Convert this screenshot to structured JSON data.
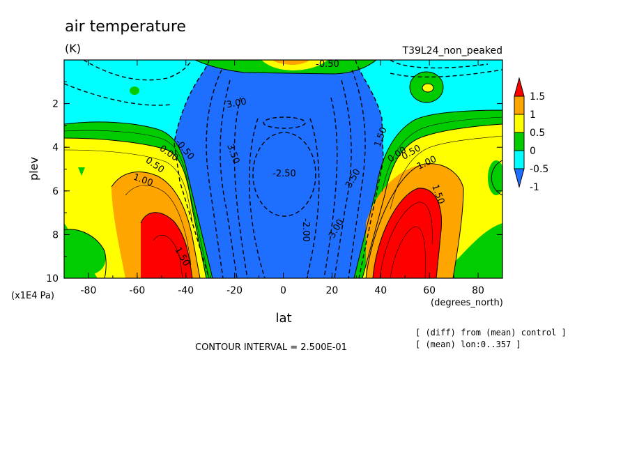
{
  "chart_data": {
    "type": "heatmap",
    "title": "air temperature",
    "units": "(K)",
    "run_label": "T39L24_non_peaked",
    "xlabel": "lat",
    "x_units": "(degrees_north)",
    "ylabel": "plev",
    "y_units": "(x1E4 Pa)",
    "x_ticks": [
      "-80",
      "-60",
      "-40",
      "-20",
      "0",
      "20",
      "40",
      "60",
      "80"
    ],
    "y_ticks": [
      "2",
      "4",
      "6",
      "8",
      "10"
    ],
    "xlim": [
      -90,
      90
    ],
    "ylim": [
      10,
      0
    ],
    "contour_interval_text": "CONTOUR INTERVAL = 2.500E-01",
    "notes": [
      "[ (diff) from (mean) control ]",
      "[ (mean) lon:0..357 ]"
    ],
    "colorbar": {
      "labels": [
        "1.5",
        "1",
        "0.5",
        "0",
        "-0.5",
        "-1"
      ],
      "colors": [
        "#ff0000",
        "#ffa500",
        "#ffff00",
        "#00cc00",
        "#00ffff",
        "#1e6eff"
      ]
    },
    "contour_labels": [
      "3.00",
      "3.50",
      "-2.50",
      "-2.00",
      "3.00",
      "3.50",
      "0.00",
      "-0.50",
      "0.50",
      "1.00",
      "1.50",
      "0.00",
      "0.50",
      "1.00",
      "1.50",
      "1.50",
      "-0.50"
    ],
    "features": [
      {
        "lat": -50,
        "plev": 9.2,
        "value": 2.0
      },
      {
        "lat": -78,
        "plev": 5.2,
        "value": 0.8
      },
      {
        "lat": 52,
        "plev": 8.5,
        "value": 2.0
      },
      {
        "lat": 60,
        "plev": 1.3,
        "value": 0.5
      },
      {
        "lat": 0,
        "plev": 5.5,
        "value": -2.5
      },
      {
        "lat": 5,
        "plev": 0.1,
        "value": 0.7
      }
    ]
  }
}
